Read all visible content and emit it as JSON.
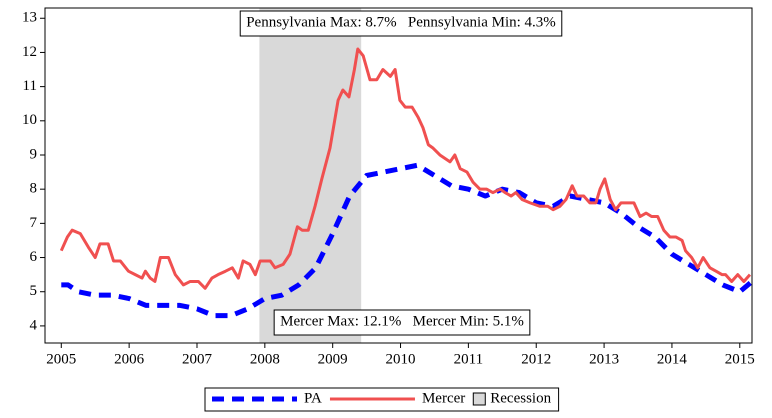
{
  "chart_data": {
    "type": "line",
    "annotations": [
      "Pennsylvania Max: 8.7%   Pennsylvania Min: 4.3%",
      "Mercer Max: 12.1%   Mercer Min: 5.1%"
    ],
    "xlim": [
      2004.76,
      2015.18
    ],
    "xticks": [
      2005,
      2006,
      2007,
      2008,
      2009,
      2010,
      2011,
      2012,
      2013,
      2014,
      2015
    ],
    "ylim": [
      3.5,
      13.3
    ],
    "yticks": [
      4,
      5,
      6,
      7,
      8,
      9,
      10,
      11,
      12,
      13
    ],
    "recession": {
      "name": "Recession",
      "color": "#d9d9d9",
      "start": 2007.92,
      "end": 2009.42
    },
    "legend": "bottom",
    "series": [
      {
        "name": "PA",
        "color": "#0000ff",
        "dashed": true,
        "x": [
          2005.0,
          2005.1,
          2005.25,
          2005.5,
          2005.75,
          2006.0,
          2006.25,
          2006.5,
          2006.75,
          2007.0,
          2007.25,
          2007.5,
          2007.75,
          2008.0,
          2008.25,
          2008.5,
          2008.75,
          2009.0,
          2009.25,
          2009.5,
          2009.75,
          2010.0,
          2010.25,
          2010.5,
          2010.75,
          2011.0,
          2011.25,
          2011.5,
          2011.75,
          2012.0,
          2012.25,
          2012.5,
          2012.75,
          2013.0,
          2013.25,
          2013.5,
          2013.75,
          2014.0,
          2014.25,
          2014.5,
          2014.75,
          2015.0,
          2015.18
        ],
        "values": [
          5.2,
          5.2,
          5.0,
          4.9,
          4.9,
          4.8,
          4.6,
          4.6,
          4.6,
          4.5,
          4.3,
          4.3,
          4.5,
          4.8,
          4.9,
          5.2,
          5.7,
          6.7,
          7.8,
          8.4,
          8.5,
          8.6,
          8.7,
          8.4,
          8.1,
          8.0,
          7.8,
          8.0,
          7.9,
          7.6,
          7.5,
          7.8,
          7.7,
          7.6,
          7.3,
          6.9,
          6.6,
          6.1,
          5.8,
          5.5,
          5.2,
          5.0,
          5.3
        ]
      },
      {
        "name": "Mercer",
        "color": "#f05050",
        "dashed": false,
        "x": [
          2005.0,
          2005.09,
          2005.16,
          2005.28,
          2005.4,
          2005.5,
          2005.57,
          2005.69,
          2005.77,
          2005.87,
          2005.99,
          2006.09,
          2006.19,
          2006.24,
          2006.31,
          2006.38,
          2006.46,
          2006.58,
          2006.68,
          2006.8,
          2006.9,
          2007.02,
          2007.12,
          2007.22,
          2007.31,
          2007.42,
          2007.52,
          2007.61,
          2007.68,
          2007.78,
          2007.86,
          2007.93,
          2008.08,
          2008.15,
          2008.27,
          2008.37,
          2008.48,
          2008.55,
          2008.64,
          2008.74,
          2008.84,
          2008.96,
          2009.08,
          2009.15,
          2009.24,
          2009.32,
          2009.37,
          2009.45,
          2009.55,
          2009.65,
          2009.74,
          2009.85,
          2009.92,
          2009.99,
          2010.07,
          2010.17,
          2010.26,
          2010.33,
          2010.41,
          2010.48,
          2010.58,
          2010.73,
          2010.8,
          2010.88,
          2010.98,
          2011.07,
          2011.17,
          2011.27,
          2011.36,
          2011.47,
          2011.54,
          2011.63,
          2011.7,
          2011.79,
          2011.91,
          2012.05,
          2012.17,
          2012.25,
          2012.35,
          2012.44,
          2012.53,
          2012.6,
          2012.7,
          2012.79,
          2012.88,
          2012.94,
          2013.01,
          2013.09,
          2013.17,
          2013.25,
          2013.35,
          2013.44,
          2013.53,
          2013.62,
          2013.7,
          2013.79,
          2013.88,
          2013.97,
          2014.06,
          2014.15,
          2014.2,
          2014.29,
          2014.38,
          2014.46,
          2014.56,
          2014.65,
          2014.74,
          2014.79,
          2014.88,
          2014.97,
          2015.06,
          2015.15
        ],
        "values": [
          6.2,
          6.6,
          6.8,
          6.7,
          6.3,
          6.0,
          6.4,
          6.4,
          5.9,
          5.9,
          5.6,
          5.5,
          5.4,
          5.6,
          5.4,
          5.3,
          6.0,
          6.0,
          5.5,
          5.2,
          5.3,
          5.3,
          5.1,
          5.4,
          5.5,
          5.6,
          5.7,
          5.4,
          5.9,
          5.8,
          5.5,
          5.9,
          5.9,
          5.7,
          5.8,
          6.1,
          6.9,
          6.8,
          6.8,
          7.5,
          8.3,
          9.2,
          10.6,
          10.9,
          10.7,
          11.5,
          12.1,
          11.9,
          11.2,
          11.2,
          11.5,
          11.3,
          11.5,
          10.6,
          10.4,
          10.4,
          10.1,
          9.8,
          9.3,
          9.2,
          9.0,
          8.8,
          9.0,
          8.6,
          8.5,
          8.2,
          8.0,
          8.0,
          7.9,
          8.0,
          7.9,
          7.8,
          7.9,
          7.7,
          7.6,
          7.5,
          7.5,
          7.4,
          7.5,
          7.7,
          8.1,
          7.8,
          7.8,
          7.6,
          7.6,
          8.0,
          8.3,
          7.7,
          7.4,
          7.6,
          7.6,
          7.6,
          7.2,
          7.3,
          7.2,
          7.2,
          6.8,
          6.6,
          6.6,
          6.5,
          6.2,
          6.0,
          5.7,
          6.0,
          5.7,
          5.6,
          5.5,
          5.5,
          5.3,
          5.5,
          5.3,
          5.5
        ]
      }
    ]
  }
}
